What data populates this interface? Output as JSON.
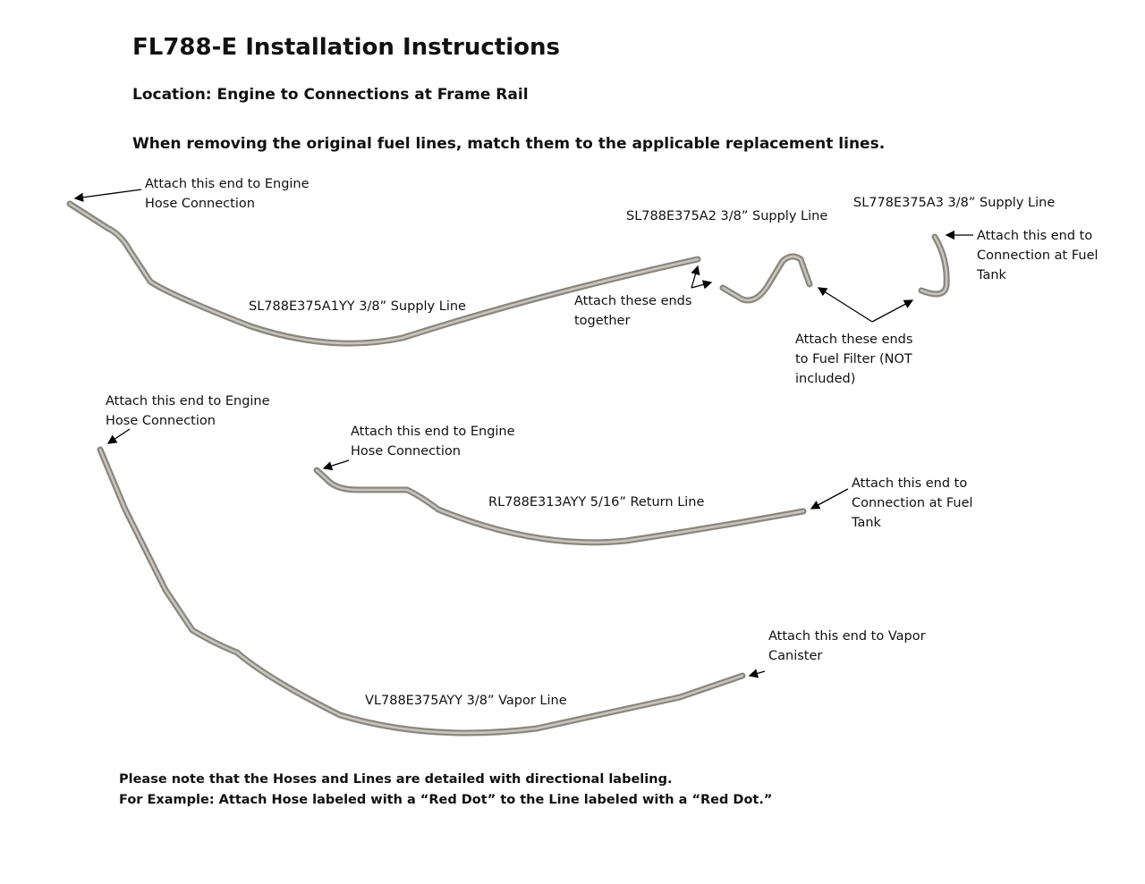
{
  "title": "FL788-E Installation Instructions",
  "location": "Location: Engine to Connections at Frame Rail",
  "instruction": "When removing the original fuel lines, match them to the applicable replacement lines.",
  "labels": {
    "a1_engine": "Attach this end to Engine\nHose Connection",
    "a1_name": "SL788E375A1YY 3/8” Supply Line",
    "a2_name": "SL788E375A2 3/8” Supply Line",
    "a3_name": "SL778E375A3 3/8” Supply Line",
    "together": "Attach these ends\ntogether",
    "a3_tank": "Attach this end to\nConnection at Fuel\nTank",
    "filter": "Attach these ends\nto Fuel Filter (NOT\nincluded)",
    "vapor_engine": "Attach this end to Engine\nHose Connection",
    "return_engine": "Attach this end to Engine\nHose Connection",
    "return_name": "RL788E313AYY 5/16” Return Line",
    "return_tank": "Attach this end to\nConnection at Fuel\nTank",
    "vapor_canister": "Attach this end to Vapor\nCanister",
    "vapor_name": "VL788E375AYY 3/8” Vapor Line"
  },
  "notes": [
    "Please note that the Hoses and Lines are detailed with directional labeling.",
    "For Example: Attach Hose labeled with a “Red Dot” to the Line labeled with a “Red Dot.”"
  ]
}
